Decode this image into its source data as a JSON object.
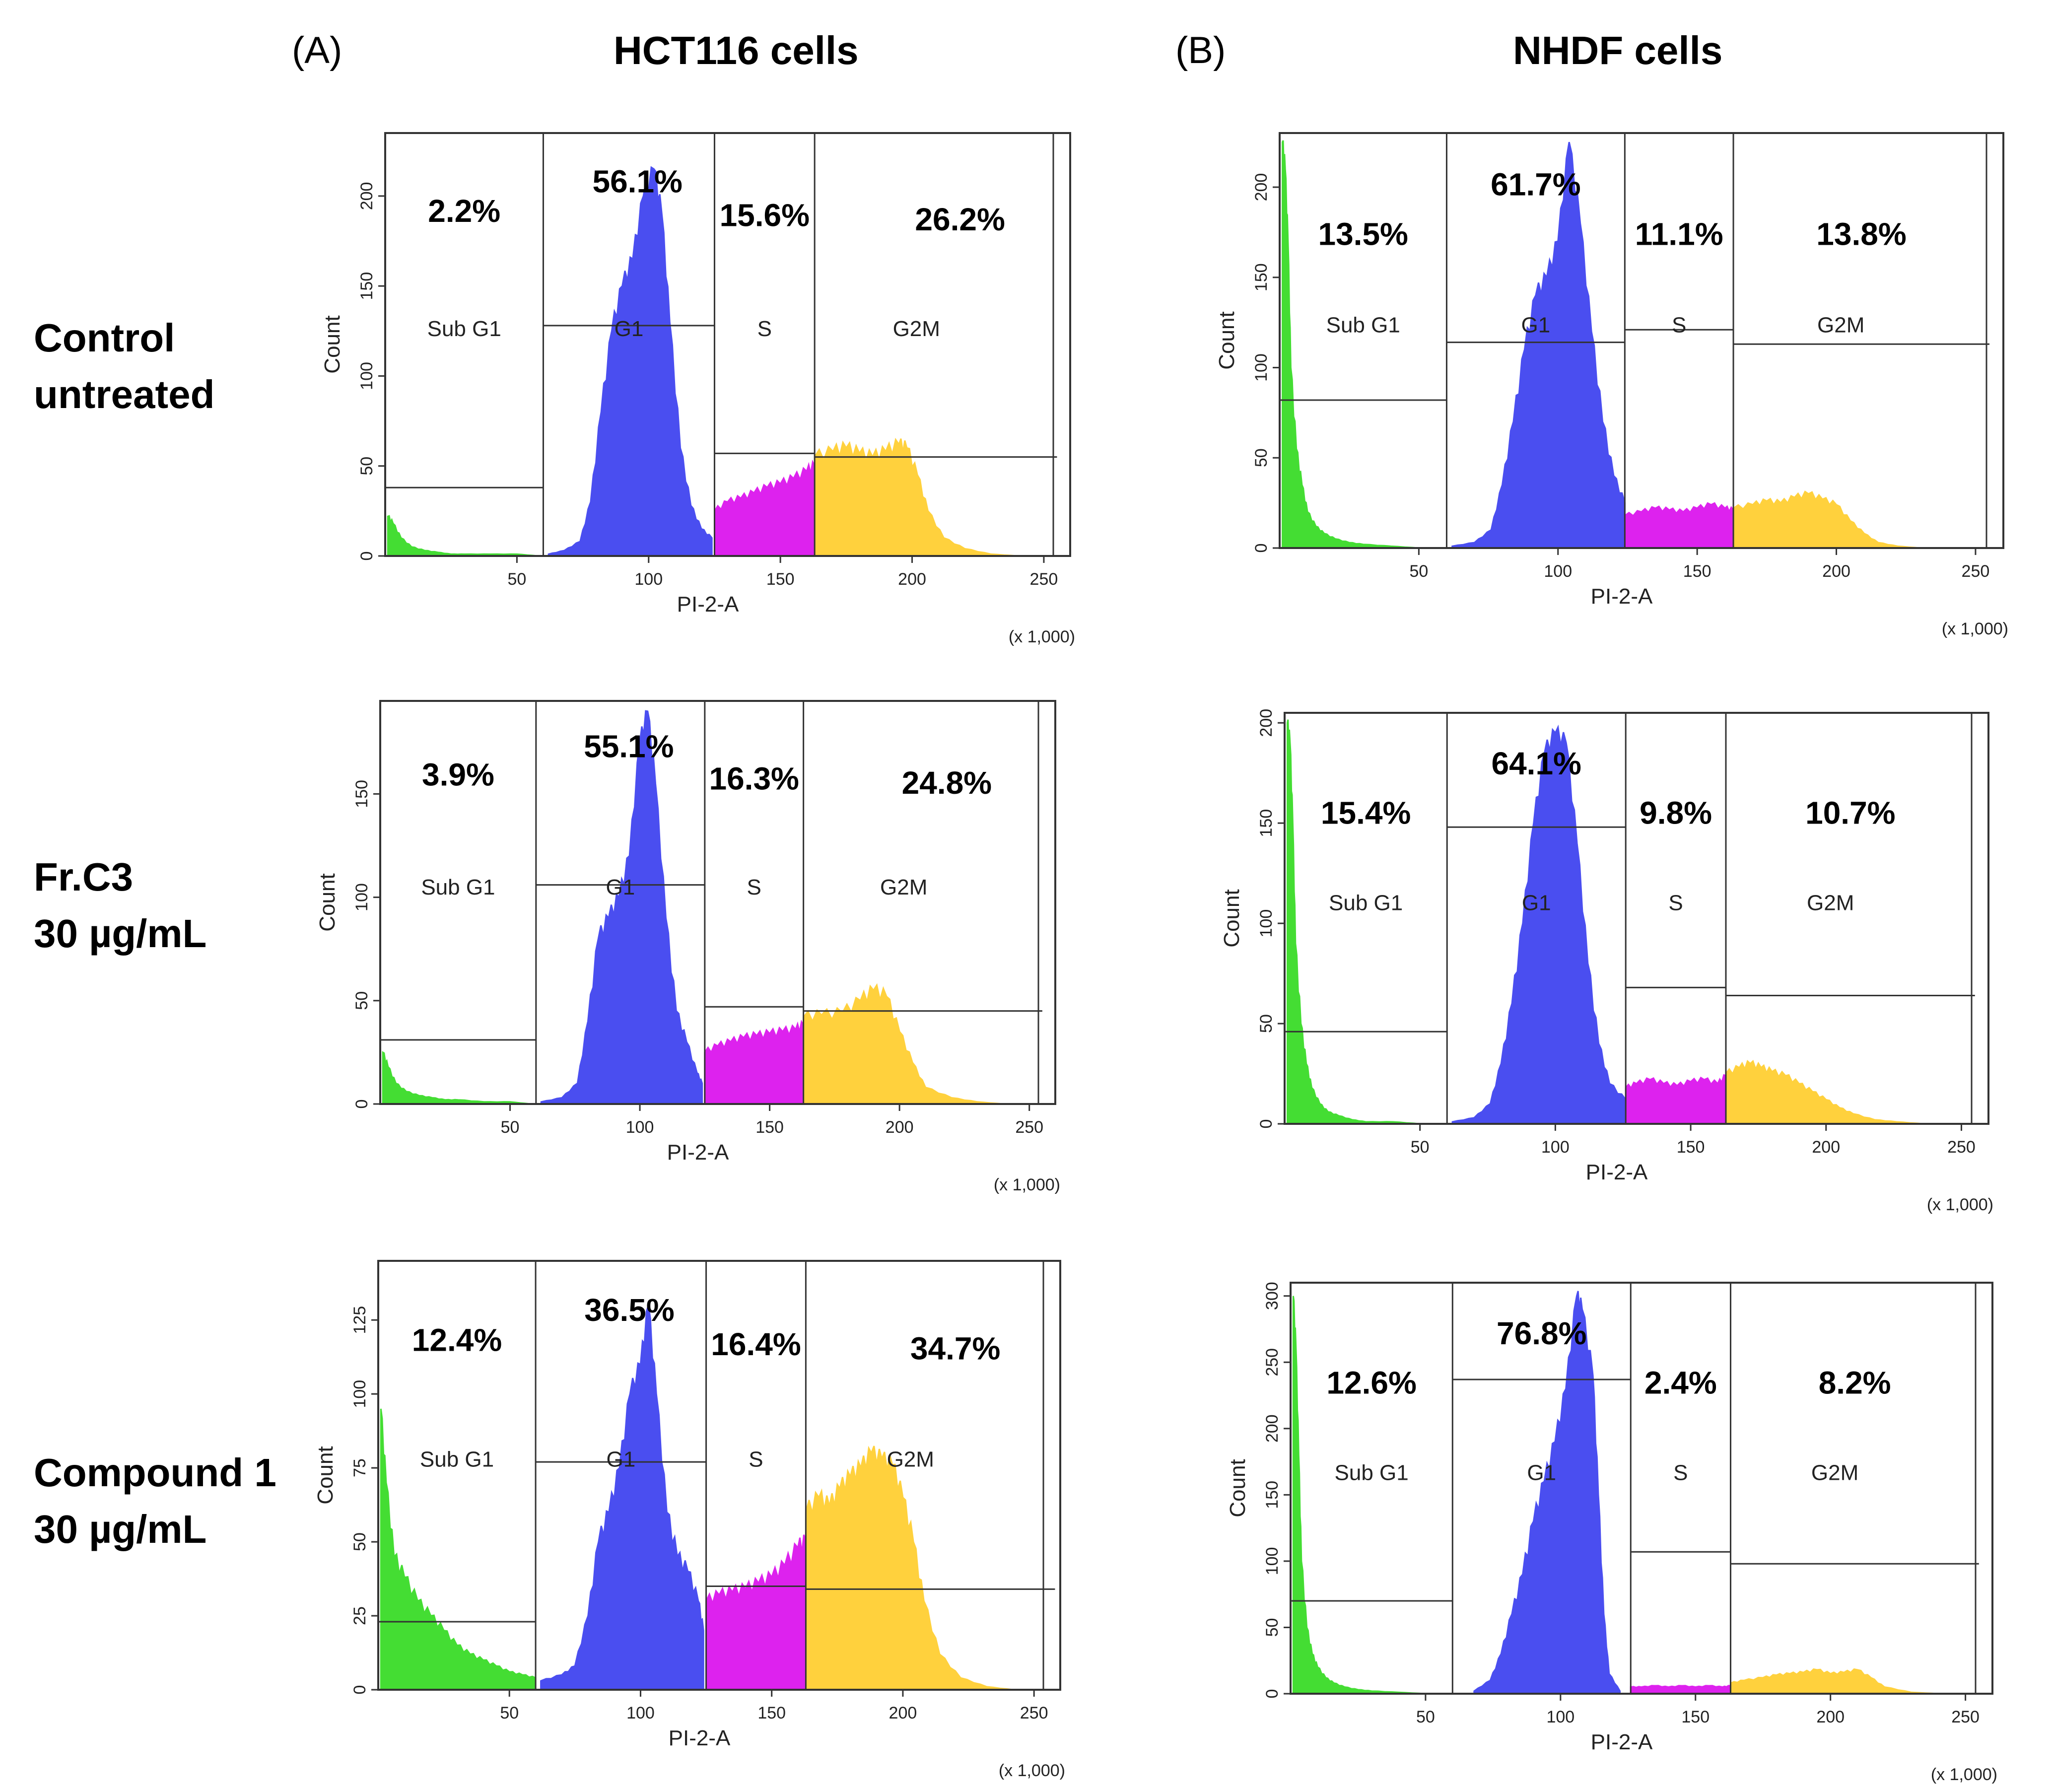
{
  "panels": {
    "a": {
      "letter": "(A)",
      "title": "HCT116 cells"
    },
    "b": {
      "letter": "(B)",
      "title": "NHDF cells"
    }
  },
  "rows": [
    {
      "line1": "Control",
      "line2": "untreated"
    },
    {
      "line1": "Fr.C3",
      "line2": "30 µg/mL"
    },
    {
      "line1": "Compound 1",
      "line2": "30 µg/mL"
    }
  ],
  "chart_data": [
    {
      "type": "area",
      "title": "HCT116 cells — Control untreated",
      "xlabel": "PI-2-A",
      "ylabel": "Count",
      "x_units": "(x 1,000)",
      "xlim": [
        0,
        260
      ],
      "ylim": [
        0,
        235
      ],
      "x_ticks": [
        "50",
        "100",
        "150",
        "200",
        "250"
      ],
      "y_ticks": [
        "0",
        "50",
        "100",
        "150",
        "200"
      ],
      "gates": [
        {
          "name": "Sub G1",
          "percent": "2.2%"
        },
        {
          "name": "G1",
          "percent": "56.1%"
        },
        {
          "name": "S",
          "percent": "15.6%"
        },
        {
          "name": "G2M",
          "percent": "26.2%"
        }
      ],
      "gate_bounds": [
        0,
        60,
        125,
        163,
        255
      ],
      "marker_levels": [
        38,
        128,
        57,
        55
      ],
      "series": [
        {
          "name": "Sub G1",
          "color": "#44dd33",
          "x": [
            1,
            3,
            6,
            10,
            15,
            20,
            25,
            30,
            40,
            50,
            58
          ],
          "y": [
            22,
            18,
            10,
            5,
            3,
            2,
            1,
            1,
            1,
            1,
            0
          ]
        },
        {
          "name": "G1",
          "color": "#4a4ef0",
          "x": [
            62,
            68,
            74,
            78,
            82,
            86,
            90,
            94,
            98,
            102,
            105,
            108,
            112,
            116,
            120,
            124
          ],
          "y": [
            1,
            3,
            8,
            30,
            80,
            125,
            150,
            165,
            200,
            215,
            190,
            130,
            60,
            28,
            15,
            10
          ]
        },
        {
          "name": "S",
          "color": "#dd22ee",
          "x": [
            125,
            130,
            135,
            140,
            145,
            150,
            155,
            160,
            163
          ],
          "y": [
            25,
            30,
            32,
            35,
            38,
            40,
            43,
            47,
            50
          ]
        },
        {
          "name": "G2M",
          "color": "#ffd13d",
          "x": [
            163,
            170,
            175,
            180,
            185,
            190,
            195,
            198,
            202,
            206,
            212,
            220,
            230,
            240,
            250
          ],
          "y": [
            55,
            58,
            60,
            57,
            55,
            58,
            62,
            60,
            45,
            25,
            10,
            4,
            1,
            0,
            0
          ]
        }
      ]
    },
    {
      "type": "area",
      "title": "HCT116 cells — Fr.C3 30 µg/mL",
      "xlabel": "PI-2-A",
      "ylabel": "Count",
      "x_units": "(x 1,000)",
      "xlim": [
        0,
        260
      ],
      "ylim": [
        0,
        195
      ],
      "x_ticks": [
        "50",
        "100",
        "150",
        "200",
        "250"
      ],
      "y_ticks": [
        "0",
        "50",
        "100",
        "150"
      ],
      "gates": [
        {
          "name": "Sub G1",
          "percent": "3.9%"
        },
        {
          "name": "G1",
          "percent": "55.1%"
        },
        {
          "name": "S",
          "percent": "16.3%"
        },
        {
          "name": "G2M",
          "percent": "24.8%"
        }
      ],
      "gate_bounds": [
        0,
        60,
        125,
        163,
        255
      ],
      "marker_levels": [
        31,
        106,
        47,
        45
      ],
      "series": [
        {
          "name": "Sub G1",
          "color": "#44dd33",
          "x": [
            1,
            3,
            6,
            10,
            15,
            20,
            25,
            30,
            40,
            50,
            58
          ],
          "y": [
            25,
            18,
            10,
            6,
            4,
            3,
            2,
            2,
            1,
            1,
            0
          ]
        },
        {
          "name": "G1",
          "color": "#4a4ef0",
          "x": [
            62,
            70,
            76,
            80,
            84,
            88,
            92,
            96,
            100,
            103,
            106,
            110,
            114,
            118,
            122,
            124
          ],
          "y": [
            1,
            3,
            10,
            40,
            80,
            90,
            100,
            120,
            175,
            190,
            155,
            90,
            45,
            30,
            15,
            10
          ]
        },
        {
          "name": "S",
          "color": "#dd22ee",
          "x": [
            125,
            130,
            135,
            140,
            145,
            150,
            155,
            160,
            163
          ],
          "y": [
            25,
            28,
            30,
            32,
            33,
            34,
            35,
            36,
            38
          ]
        },
        {
          "name": "G2M",
          "color": "#ffd13d",
          "x": [
            163,
            170,
            178,
            185,
            190,
            195,
            200,
            205,
            210,
            220,
            230,
            240,
            250
          ],
          "y": [
            42,
            43,
            44,
            50,
            55,
            52,
            35,
            20,
            8,
            3,
            1,
            0,
            0
          ]
        }
      ]
    },
    {
      "type": "area",
      "title": "HCT116 cells — Compound 1 30 µg/mL",
      "xlabel": "PI-2-A",
      "ylabel": "Count",
      "x_units": "(x 1,000)",
      "xlim": [
        0,
        260
      ],
      "ylim": [
        0,
        145
      ],
      "x_ticks": [
        "50",
        "100",
        "150",
        "200",
        "250"
      ],
      "y_ticks": [
        "0",
        "25",
        "50",
        "75",
        "100",
        "125"
      ],
      "gates": [
        {
          "name": "Sub G1",
          "percent": "12.4%"
        },
        {
          "name": "G1",
          "percent": "36.5%"
        },
        {
          "name": "S",
          "percent": "16.4%"
        },
        {
          "name": "G2M",
          "percent": "34.7%"
        }
      ],
      "gate_bounds": [
        0,
        60,
        125,
        163,
        258
      ],
      "marker_levels": [
        23,
        77,
        35,
        34
      ],
      "series": [
        {
          "name": "Sub G1",
          "color": "#44dd33",
          "x": [
            1,
            3,
            6,
            10,
            15,
            20,
            25,
            30,
            35,
            40,
            45,
            50,
            55,
            60
          ],
          "y": [
            95,
            70,
            45,
            38,
            30,
            25,
            20,
            15,
            12,
            10,
            8,
            6,
            5,
            4
          ]
        },
        {
          "name": "G1",
          "color": "#4a4ef0",
          "x": [
            62,
            70,
            75,
            80,
            84,
            88,
            92,
            96,
            100,
            103,
            106,
            110,
            114,
            118,
            122,
            124
          ],
          "y": [
            3,
            5,
            8,
            25,
            50,
            60,
            75,
            100,
            110,
            130,
            100,
            60,
            45,
            40,
            30,
            20
          ]
        },
        {
          "name": "S",
          "color": "#dd22ee",
          "x": [
            125,
            130,
            135,
            140,
            145,
            150,
            155,
            160,
            163
          ],
          "y": [
            30,
            32,
            33,
            34,
            36,
            38,
            42,
            48,
            50
          ]
        },
        {
          "name": "G2M",
          "color": "#ffd13d",
          "x": [
            163,
            168,
            172,
            176,
            180,
            184,
            188,
            192,
            196,
            200,
            204,
            208,
            214,
            222,
            232,
            242,
            252
          ],
          "y": [
            60,
            65,
            62,
            68,
            72,
            75,
            80,
            78,
            76,
            65,
            50,
            30,
            12,
            4,
            1,
            0,
            0
          ]
        }
      ]
    },
    {
      "type": "area",
      "title": "NHDF cells — Control untreated",
      "xlabel": "PI-2-A",
      "ylabel": "Count",
      "x_units": "(x 1,000)",
      "xlim": [
        0,
        260
      ],
      "ylim": [
        0,
        230
      ],
      "x_ticks": [
        "50",
        "100",
        "150",
        "200",
        "250"
      ],
      "y_ticks": [
        "0",
        "50",
        "100",
        "150",
        "200"
      ],
      "gates": [
        {
          "name": "Sub G1",
          "percent": "13.5%"
        },
        {
          "name": "G1",
          "percent": "61.7%"
        },
        {
          "name": "S",
          "percent": "11.1%"
        },
        {
          "name": "G2M",
          "percent": "13.8%"
        }
      ],
      "gate_bounds": [
        0,
        60,
        124,
        163,
        255
      ],
      "marker_levels": [
        82,
        114,
        121,
        113
      ],
      "series": [
        {
          "name": "Sub G1",
          "color": "#44dd33",
          "x": [
            1,
            2,
            3,
            4,
            6,
            8,
            10,
            13,
            16,
            20,
            25,
            30,
            40,
            50,
            58
          ],
          "y": [
            225,
            210,
            170,
            100,
            55,
            35,
            20,
            12,
            8,
            5,
            3,
            2,
            1,
            0,
            0
          ]
        },
        {
          "name": "G1",
          "color": "#4a4ef0",
          "x": [
            62,
            70,
            76,
            80,
            84,
            88,
            92,
            96,
            100,
            104,
            108,
            112,
            116,
            120,
            124
          ],
          "y": [
            1,
            3,
            10,
            35,
            70,
            110,
            140,
            150,
            170,
            225,
            180,
            120,
            70,
            40,
            25
          ]
        },
        {
          "name": "S",
          "color": "#dd22ee",
          "x": [
            124,
            130,
            135,
            140,
            145,
            150,
            155,
            160,
            163
          ],
          "y": [
            18,
            20,
            22,
            21,
            20,
            22,
            24,
            22,
            21
          ]
        },
        {
          "name": "G2M",
          "color": "#ffd13d",
          "x": [
            163,
            170,
            175,
            180,
            185,
            190,
            195,
            200,
            205,
            210,
            215,
            222,
            230,
            240,
            250
          ],
          "y": [
            22,
            24,
            26,
            25,
            28,
            30,
            27,
            24,
            15,
            8,
            3,
            1,
            0,
            0,
            0
          ]
        }
      ]
    },
    {
      "type": "area",
      "title": "NHDF cells — Fr.C3 30 µg/mL",
      "xlabel": "PI-2-A",
      "ylabel": "Count",
      "x_units": "(x 1,000)",
      "xlim": [
        0,
        260
      ],
      "ylim": [
        0,
        205
      ],
      "x_ticks": [
        "50",
        "100",
        "150",
        "200",
        "250"
      ],
      "y_ticks": [
        "0",
        "50",
        "100",
        "150",
        "200"
      ],
      "gates": [
        {
          "name": "Sub G1",
          "percent": "15.4%"
        },
        {
          "name": "G1",
          "percent": "64.1%"
        },
        {
          "name": "S",
          "percent": "9.8%"
        },
        {
          "name": "G2M",
          "percent": "10.7%"
        }
      ],
      "gate_bounds": [
        0,
        60,
        126,
        163,
        255
      ],
      "marker_levels": [
        46,
        148,
        68,
        64
      ],
      "series": [
        {
          "name": "Sub G1",
          "color": "#44dd33",
          "x": [
            1,
            2,
            3,
            4,
            6,
            8,
            10,
            13,
            16,
            20,
            25,
            30,
            40,
            50,
            58
          ],
          "y": [
            200,
            190,
            150,
            90,
            50,
            30,
            18,
            10,
            6,
            4,
            2,
            1,
            1,
            0,
            0
          ]
        },
        {
          "name": "G1",
          "color": "#4a4ef0",
          "x": [
            62,
            70,
            76,
            80,
            84,
            88,
            92,
            96,
            100,
            104,
            108,
            112,
            116,
            120,
            126
          ],
          "y": [
            1,
            3,
            10,
            30,
            60,
            100,
            150,
            185,
            195,
            190,
            140,
            80,
            40,
            20,
            12
          ]
        },
        {
          "name": "S",
          "color": "#dd22ee",
          "x": [
            126,
            130,
            135,
            140,
            145,
            150,
            155,
            160,
            163
          ],
          "y": [
            18,
            20,
            22,
            20,
            19,
            21,
            22,
            20,
            24
          ]
        },
        {
          "name": "G2M",
          "color": "#ffd13d",
          "x": [
            163,
            168,
            172,
            176,
            180,
            185,
            190,
            195,
            200,
            205,
            210,
            218,
            226,
            236,
            250
          ],
          "y": [
            25,
            28,
            30,
            28,
            26,
            24,
            20,
            16,
            12,
            8,
            5,
            2,
            1,
            0,
            0
          ]
        }
      ]
    },
    {
      "type": "area",
      "title": "NHDF cells — Compound 1 30 µg/mL",
      "xlabel": "PI-2-A",
      "ylabel": "Count",
      "x_units": "(x 1,000)",
      "xlim": [
        0,
        260
      ],
      "ylim": [
        0,
        310
      ],
      "x_ticks": [
        "50",
        "100",
        "150",
        "200",
        "250"
      ],
      "y_ticks": [
        "0",
        "50",
        "100",
        "150",
        "200",
        "250",
        "300"
      ],
      "gates": [
        {
          "name": "Sub G1",
          "percent": "12.6%"
        },
        {
          "name": "G1",
          "percent": "76.8%"
        },
        {
          "name": "S",
          "percent": "2.4%"
        },
        {
          "name": "G2M",
          "percent": "8.2%"
        }
      ],
      "gate_bounds": [
        0,
        60,
        126,
        163,
        255
      ],
      "marker_levels": [
        70,
        237,
        107,
        98
      ],
      "series": [
        {
          "name": "Sub G1",
          "color": "#44dd33",
          "x": [
            1,
            2,
            3,
            4,
            6,
            8,
            10,
            13,
            16,
            20,
            25,
            30,
            40,
            50,
            58
          ],
          "y": [
            300,
            260,
            180,
            100,
            50,
            30,
            20,
            12,
            8,
            5,
            3,
            2,
            1,
            0,
            0
          ]
        },
        {
          "name": "G1",
          "color": "#4a4ef0",
          "x": [
            68,
            74,
            78,
            82,
            86,
            90,
            94,
            98,
            102,
            106,
            108,
            112,
            114,
            116,
            118,
            122
          ],
          "y": [
            2,
            10,
            30,
            60,
            90,
            130,
            160,
            190,
            230,
            300,
            290,
            240,
            150,
            60,
            15,
            2
          ]
        },
        {
          "name": "S",
          "color": "#dd22ee",
          "x": [
            126,
            130,
            135,
            140,
            145,
            150,
            155,
            160,
            163
          ],
          "y": [
            5,
            5,
            6,
            5,
            6,
            5,
            6,
            5,
            6
          ]
        },
        {
          "name": "G2M",
          "color": "#ffd13d",
          "x": [
            163,
            168,
            175,
            180,
            185,
            190,
            195,
            200,
            205,
            210,
            215,
            220,
            230,
            240,
            250
          ],
          "y": [
            8,
            10,
            12,
            14,
            15,
            16,
            18,
            15,
            16,
            18,
            12,
            5,
            1,
            0,
            0
          ]
        }
      ]
    }
  ]
}
